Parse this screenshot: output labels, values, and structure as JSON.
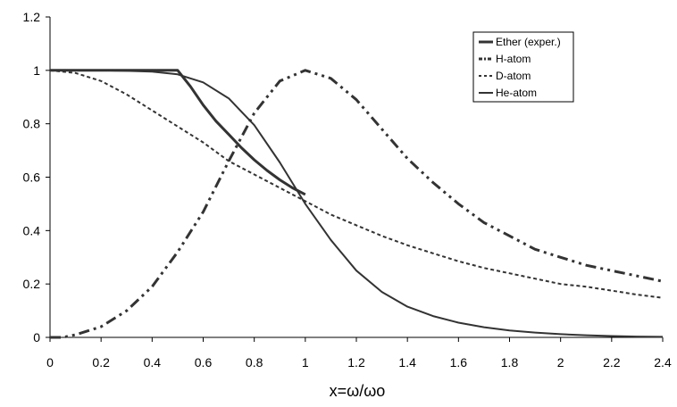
{
  "chart_data": {
    "type": "line",
    "title": "",
    "xlabel": "x=ω/ωo",
    "ylabel": "",
    "xlim": [
      0,
      2.4
    ],
    "ylim": [
      0,
      1.2
    ],
    "x_ticks": [
      "0",
      "0.2",
      "0.4",
      "0.6",
      "0.8",
      "1",
      "1.2",
      "1.4",
      "1.6",
      "1.8",
      "2",
      "2.2",
      "2.4"
    ],
    "y_ticks": [
      "0",
      "0.2",
      "0.4",
      "0.6",
      "0.8",
      "1",
      "1.2"
    ],
    "grid": false,
    "legend_position": "top-right",
    "colors": {
      "line": "#333333",
      "axis": "#000000"
    },
    "series": [
      {
        "name": "Ether (exper.)",
        "style": "solid-thick",
        "x": [
          0,
          0.1,
          0.2,
          0.3,
          0.4,
          0.5,
          0.55,
          0.6,
          0.65,
          0.7,
          0.75,
          0.8,
          0.85,
          0.9,
          0.95,
          1.0
        ],
        "y": [
          1.0,
          1.0,
          1.0,
          1.0,
          1.0,
          1.0,
          0.94,
          0.87,
          0.81,
          0.76,
          0.71,
          0.665,
          0.625,
          0.59,
          0.56,
          0.535
        ]
      },
      {
        "name": "H-atom",
        "style": "dash-dot",
        "x": [
          0,
          0.05,
          0.1,
          0.2,
          0.3,
          0.4,
          0.5,
          0.6,
          0.7,
          0.8,
          0.9,
          1.0,
          1.1,
          1.2,
          1.3,
          1.4,
          1.5,
          1.6,
          1.7,
          1.8,
          1.9,
          2.0,
          2.1,
          2.2,
          2.3,
          2.4
        ],
        "y": [
          0.0,
          0.0,
          0.01,
          0.04,
          0.1,
          0.19,
          0.32,
          0.47,
          0.66,
          0.84,
          0.96,
          1.0,
          0.97,
          0.89,
          0.78,
          0.67,
          0.58,
          0.5,
          0.43,
          0.38,
          0.33,
          0.3,
          0.27,
          0.25,
          0.23,
          0.21
        ]
      },
      {
        "name": "D-atom",
        "style": "dashed",
        "x": [
          0,
          0.1,
          0.2,
          0.3,
          0.4,
          0.5,
          0.6,
          0.7,
          0.8,
          0.9,
          1.0,
          1.1,
          1.2,
          1.3,
          1.4,
          1.5,
          1.6,
          1.7,
          1.8,
          1.9,
          2.0,
          2.1,
          2.2,
          2.3,
          2.4
        ],
        "y": [
          1.0,
          0.99,
          0.96,
          0.91,
          0.85,
          0.79,
          0.73,
          0.66,
          0.61,
          0.56,
          0.51,
          0.46,
          0.42,
          0.38,
          0.345,
          0.315,
          0.285,
          0.26,
          0.24,
          0.22,
          0.2,
          0.19,
          0.175,
          0.16,
          0.148
        ]
      },
      {
        "name": "He-atom",
        "style": "solid",
        "x": [
          0,
          0.1,
          0.2,
          0.3,
          0.4,
          0.45,
          0.5,
          0.6,
          0.7,
          0.8,
          0.9,
          1.0,
          1.1,
          1.2,
          1.3,
          1.4,
          1.5,
          1.6,
          1.7,
          1.8,
          1.9,
          2.0,
          2.1,
          2.2,
          2.3,
          2.4
        ],
        "y": [
          1.0,
          1.0,
          1.0,
          0.998,
          0.995,
          0.99,
          0.985,
          0.955,
          0.895,
          0.795,
          0.655,
          0.5,
          0.365,
          0.25,
          0.17,
          0.115,
          0.08,
          0.055,
          0.038,
          0.026,
          0.018,
          0.012,
          0.008,
          0.005,
          0.003,
          0.002
        ]
      }
    ]
  }
}
